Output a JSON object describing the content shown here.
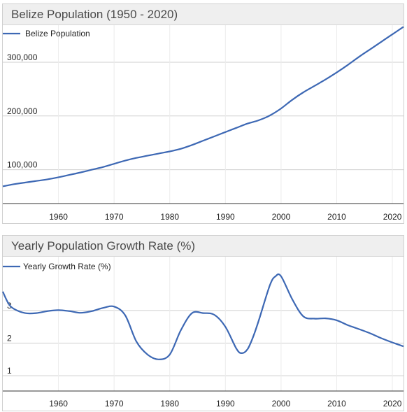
{
  "chart_data": [
    {
      "type": "line",
      "title": "Belize Population (1950 - 2020)",
      "series": [
        {
          "name": "Belize Population",
          "color": "#3d68b4",
          "x": [
            1950,
            1952,
            1954,
            1956,
            1958,
            1960,
            1962,
            1964,
            1966,
            1968,
            1970,
            1972,
            1974,
            1976,
            1978,
            1980,
            1982,
            1984,
            1986,
            1988,
            1990,
            1992,
            1994,
            1996,
            1998,
            2000,
            2002,
            2004,
            2006,
            2008,
            2010,
            2012,
            2014,
            2016,
            2018,
            2020,
            2022
          ],
          "values": [
            69000,
            73000,
            76000,
            79000,
            82000,
            86000,
            90500,
            95000,
            100000,
            105000,
            111000,
            117000,
            122000,
            126000,
            130000,
            134000,
            139000,
            146000,
            154000,
            162000,
            170000,
            178000,
            186000,
            192000,
            201000,
            214000,
            230000,
            244000,
            256000,
            268000,
            281000,
            295000,
            310000,
            324000,
            338000,
            352000,
            366000
          ]
        }
      ],
      "xticks": [
        "1960",
        "1970",
        "1980",
        "1990",
        "2000",
        "2010",
        "2020"
      ],
      "yticks": [
        "100,000",
        "200,000",
        "300,000"
      ],
      "xlim": [
        1950,
        2022
      ],
      "ylim": [
        37000,
        369000
      ],
      "legend": "top-left",
      "grid": true
    },
    {
      "type": "line",
      "title": "Yearly Population Growth Rate (%)",
      "series": [
        {
          "name": "Yearly Growth Rate (%)",
          "color": "#3d68b4",
          "x": [
            1950,
            1951,
            1952,
            1954,
            1956,
            1958,
            1960,
            1962,
            1964,
            1966,
            1968,
            1970,
            1972,
            1974,
            1976,
            1978,
            1980,
            1982,
            1984,
            1986,
            1988,
            1990,
            1992,
            1993,
            1994,
            1995,
            1996,
            1998,
            1999,
            2000,
            2002,
            2004,
            2006,
            2008,
            2010,
            2012,
            2014,
            2016,
            2018,
            2020,
            2022
          ],
          "values": [
            3.58,
            3.22,
            3.05,
            2.92,
            2.92,
            2.98,
            3.01,
            2.98,
            2.93,
            2.98,
            3.08,
            3.12,
            2.85,
            2.05,
            1.65,
            1.5,
            1.65,
            2.4,
            2.92,
            2.92,
            2.87,
            2.5,
            1.82,
            1.69,
            1.82,
            2.2,
            2.7,
            3.78,
            4.05,
            4.05,
            3.35,
            2.82,
            2.75,
            2.76,
            2.7,
            2.55,
            2.43,
            2.3,
            2.15,
            2.02,
            1.9
          ],
          "type": "smooth"
        }
      ],
      "xticks": [
        "1960",
        "1970",
        "1980",
        "1990",
        "2000",
        "2010",
        "2020"
      ],
      "yticks": [
        "1",
        "2",
        "3"
      ],
      "xlim": [
        1950,
        2022
      ],
      "ylim": [
        0.53,
        4.65
      ],
      "legend": "top-left",
      "grid": true
    }
  ]
}
